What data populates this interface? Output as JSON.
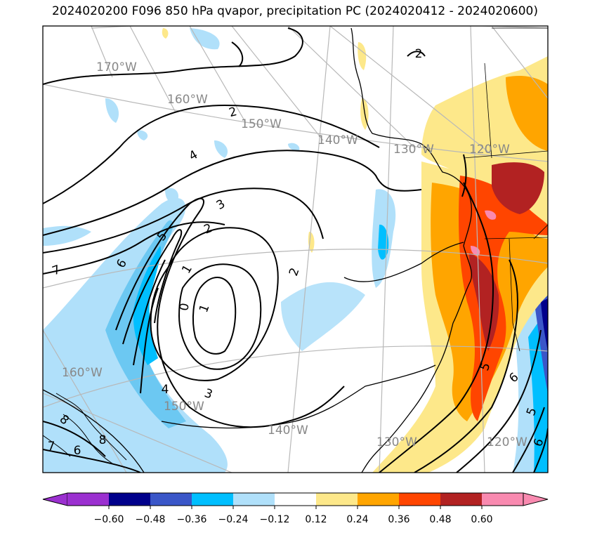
{
  "title": "2024020200 F096 850 hPa qvapor, precipitation PC (2024020412 - 2024020600)",
  "colorbar": {
    "ticks": [
      "−0.60",
      "−0.48",
      "−0.36",
      "−0.24",
      "−0.12",
      "0.12",
      "0.24",
      "0.36",
      "0.48",
      "0.60"
    ],
    "colors": [
      "#9b30d0",
      "#00008b",
      "#3a56c8",
      "#00bfff",
      "#b0e0fa",
      "#ffffff",
      "#fde88a",
      "#ffa500",
      "#ff4500",
      "#b22222",
      "#f98ab0"
    ]
  },
  "longitude_labels_top": [
    "170°W",
    "160°W",
    "150°W",
    "140°W",
    "130°W",
    "120°W"
  ],
  "longitude_labels_bottom": [
    "160°W",
    "150°W",
    "140°W",
    "130°W",
    "120°W"
  ],
  "contour_labels": [
    "2",
    "2",
    "3",
    "4",
    "5",
    "6",
    "1",
    "0",
    "1",
    "2",
    "2",
    "3",
    "4",
    "5",
    "6",
    "5",
    "6",
    "7",
    "8",
    "6",
    "7",
    "8"
  ]
}
